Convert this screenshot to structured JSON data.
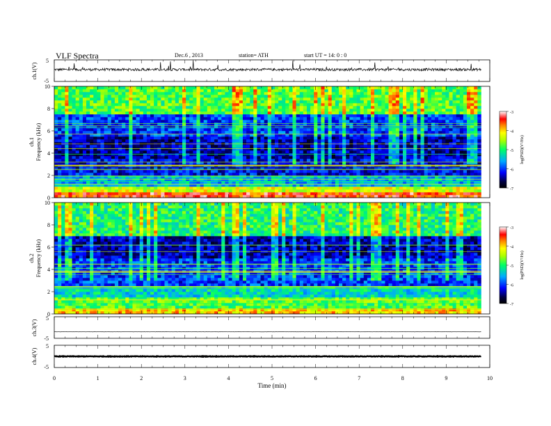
{
  "header": {
    "title": "VLF  Spectra",
    "date": "Dec.6  , 2013",
    "station": "station= ATH",
    "start": "start  UT  =   14: 0  : 0"
  },
  "chart_data": [
    {
      "type": "line",
      "id": "ch1",
      "ylabel": "ch.1(V)",
      "ylim": [
        -5,
        5
      ],
      "y_tick_labels": [
        "5",
        "-5"
      ],
      "xlim": [
        0,
        10
      ],
      "data_extent_min": [
        0,
        9.8
      ],
      "baseline_v": 0.5,
      "noise_amplitude_v": 1.2,
      "series": [
        {
          "values_summary": "trace near +0.5 V with spikes reaching +5 V"
        }
      ]
    },
    {
      "type": "heatmap",
      "id": "ch1_spec",
      "ylabel": "ch.1\nFrequency  (kHz)",
      "ylim": [
        0,
        10
      ],
      "y_ticks": [
        0,
        2,
        4,
        6,
        8,
        10
      ],
      "xlim": [
        0,
        10
      ],
      "data_extent_min": [
        0,
        9.8
      ],
      "colorbar": {
        "label": "log(PSD)(V²/Hz)",
        "range": [
          -7,
          -3
        ],
        "ticks": [
          "-3",
          "-4",
          "-5",
          "-6",
          "-7"
        ]
      },
      "intensity_bands_khz": [
        {
          "from": 0.0,
          "to": 0.5,
          "level": -3.5
        },
        {
          "from": 0.5,
          "to": 1.0,
          "level": -4.3
        },
        {
          "from": 1.0,
          "to": 2.0,
          "level": -5.5
        },
        {
          "from": 2.0,
          "to": 3.5,
          "level": -6.2
        },
        {
          "from": 3.5,
          "to": 5.5,
          "level": -6.4
        },
        {
          "from": 5.5,
          "to": 7.5,
          "level": -6.0
        },
        {
          "from": 7.5,
          "to": 10.0,
          "level": -4.8
        }
      ]
    },
    {
      "type": "heatmap",
      "id": "ch2_spec",
      "ylabel": "ch.2\nFrequency  (kHz)",
      "ylim": [
        0,
        10
      ],
      "y_ticks": [
        0,
        2,
        4,
        6,
        8,
        10
      ],
      "xlim": [
        0,
        10
      ],
      "data_extent_min": [
        0,
        9.8
      ],
      "colorbar": {
        "label": "log(PSD)(V²/Hz)",
        "range": [
          -7,
          -3
        ],
        "ticks": [
          "-3",
          "-4",
          "-5",
          "-6",
          "-7"
        ]
      },
      "intensity_bands_khz": [
        {
          "from": 0.0,
          "to": 0.5,
          "level": -4.0
        },
        {
          "from": 0.5,
          "to": 1.5,
          "level": -4.8
        },
        {
          "from": 1.5,
          "to": 2.5,
          "level": -5.3
        },
        {
          "from": 2.5,
          "to": 5.0,
          "level": -6.0
        },
        {
          "from": 5.0,
          "to": 7.0,
          "level": -6.4
        },
        {
          "from": 7.0,
          "to": 10.0,
          "level": -5.0
        }
      ]
    },
    {
      "type": "line",
      "id": "ch3",
      "ylabel": "ch.3(V)",
      "ylim": [
        -5,
        5
      ],
      "y_tick_labels": [
        "5",
        "-5"
      ],
      "xlim": [
        0,
        10
      ],
      "data_extent_min": [
        0,
        9.8
      ],
      "baseline_v": -2.0,
      "noise_amplitude_v": 0.05,
      "series": [
        {
          "values_summary": "flat trace near -2 V"
        }
      ]
    },
    {
      "type": "line",
      "id": "ch4",
      "ylabel": "ch.4(V)",
      "ylim": [
        -5,
        5
      ],
      "y_tick_labels": [
        "5",
        "-5"
      ],
      "xlim": [
        0,
        10
      ],
      "data_extent_min": [
        0,
        9.8
      ],
      "baseline_v": 0.0,
      "noise_amplitude_v": 0.25,
      "series": [
        {
          "values_summary": "thick flat trace near 0 V"
        }
      ]
    }
  ],
  "x_axis": {
    "label": "Time  (min)",
    "tick_labels": [
      "0",
      "1",
      "2",
      "3",
      "4",
      "5",
      "6",
      "7",
      "8",
      "9",
      "10"
    ]
  }
}
